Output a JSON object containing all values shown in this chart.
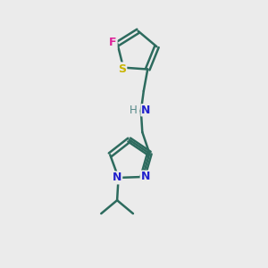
{
  "background_color": "#ebebeb",
  "bond_color": "#2d6b5e",
  "sulfur_color": "#c8b400",
  "fluorine_color": "#dd2299",
  "nitrogen_color": "#2222cc",
  "nh_color": "#558888",
  "bond_width": 1.8,
  "figsize": [
    3.0,
    3.0
  ],
  "dpi": 100,
  "xlim": [
    0,
    10
  ],
  "ylim": [
    0,
    10
  ]
}
